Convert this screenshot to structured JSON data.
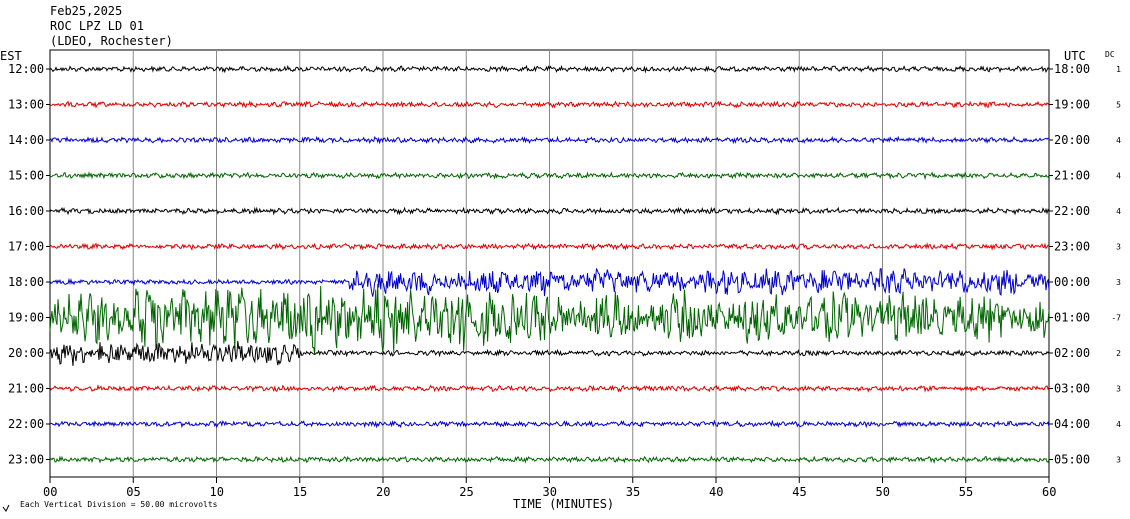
{
  "header": {
    "date": "Feb25,2025",
    "station": "ROC LPZ LD 01",
    "network": "(LDEO, Rochester)"
  },
  "axis": {
    "left_zone": "EST",
    "right_zone": "UTC",
    "dc_label": "DC",
    "xlabel": "TIME (MINUTES)",
    "x_ticks": [
      "00",
      "05",
      "10",
      "15",
      "20",
      "25",
      "30",
      "35",
      "40",
      "45",
      "50",
      "55",
      "60"
    ]
  },
  "footer": {
    "scale_text": "Each Vertical Division =   50.00 microvolts",
    "scale_icon": "scale-symbol-icon"
  },
  "chart_data": {
    "type": "line",
    "xlim": [
      0,
      60
    ],
    "grid": true,
    "trace_colors": [
      "#000000",
      "#dd0000",
      "#0000cc",
      "#006600"
    ],
    "rows": [
      {
        "est": "12:00",
        "utc": "18:00",
        "dc": "1",
        "color": "#000000",
        "activity": "quiet"
      },
      {
        "est": "13:00",
        "utc": "19:00",
        "dc": "5",
        "color": "#dd0000",
        "activity": "quiet"
      },
      {
        "est": "14:00",
        "utc": "20:00",
        "dc": "4",
        "color": "#0000cc",
        "activity": "quiet"
      },
      {
        "est": "15:00",
        "utc": "21:00",
        "dc": "4",
        "color": "#006600",
        "activity": "quiet"
      },
      {
        "est": "16:00",
        "utc": "22:00",
        "dc": "4",
        "color": "#000000",
        "activity": "quiet"
      },
      {
        "est": "17:00",
        "utc": "23:00",
        "dc": "3",
        "color": "#dd0000",
        "activity": "quiet"
      },
      {
        "est": "18:00",
        "utc": "00:00",
        "dc": "3",
        "color": "#0000cc",
        "activity": "onset",
        "event_start_min": 18
      },
      {
        "est": "19:00",
        "utc": "01:00",
        "dc": "-7",
        "color": "#006600",
        "activity": "strong"
      },
      {
        "est": "20:00",
        "utc": "02:00",
        "dc": "2",
        "color": "#000000",
        "activity": "decay",
        "event_end_min": 15
      },
      {
        "est": "21:00",
        "utc": "03:00",
        "dc": "3",
        "color": "#dd0000",
        "activity": "quiet"
      },
      {
        "est": "22:00",
        "utc": "04:00",
        "dc": "4",
        "color": "#0000cc",
        "activity": "quiet"
      },
      {
        "est": "23:00",
        "utc": "05:00",
        "dc": "3",
        "color": "#006600",
        "activity": "quiet"
      }
    ]
  }
}
